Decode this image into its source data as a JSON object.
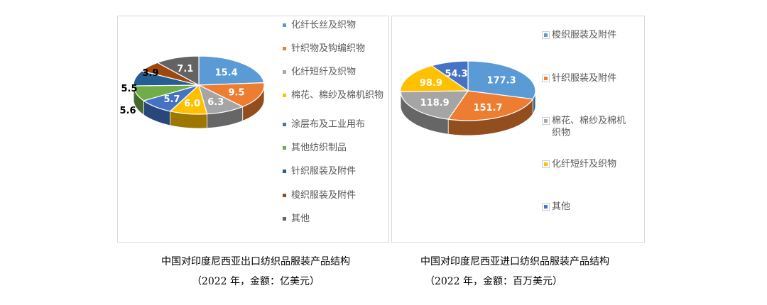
{
  "chart_data": [
    {
      "type": "pie",
      "subtype": "3d-pie",
      "title": "中国对印度尼西亚出口纺织品服装产品结构",
      "subtitle": "（2022 年，金额：亿美元）",
      "categories": [
        "化纤长丝及织物",
        "针织物及钩编织物",
        "化纤短纤及织物",
        "棉花、棉纱及棉机织物",
        "涂层布及工业用布",
        "其他纺织制品",
        "针织服装及附件",
        "梭织服装及附件",
        "其他"
      ],
      "values": [
        15.4,
        9.5,
        6.3,
        6.0,
        5.7,
        5.6,
        5.5,
        3.9,
        7.1
      ],
      "labels": [
        "15.4",
        "9.5",
        "6.3",
        "6.0",
        "5.7",
        "5.6",
        "5.5",
        "3.9",
        "7.1"
      ],
      "colors": [
        "#5B9BD5",
        "#ED7D31",
        "#A5A5A5",
        "#FFC000",
        "#4472C4",
        "#70AD47",
        "#255E91",
        "#9E480E",
        "#636363"
      ],
      "legend_position": "right"
    },
    {
      "type": "pie",
      "subtype": "3d-pie",
      "title": "中国对印度尼西亚进口纺织品服装产品结构",
      "subtitle": "（2022 年，金额：百万美元）",
      "categories": [
        "梭织服装及附件",
        "针织服装及附件",
        "棉花、棉纱及棉机织物",
        "化纤短纤及织物",
        "其他"
      ],
      "values": [
        177.3,
        151.7,
        118.9,
        98.9,
        54.3
      ],
      "labels": [
        "177.3",
        "151.7",
        "118.9",
        "98.9",
        "54.3"
      ],
      "colors": [
        "#5B9BD5",
        "#ED7D31",
        "#A5A5A5",
        "#FFC000",
        "#4472C4"
      ],
      "legend_position": "right"
    }
  ]
}
